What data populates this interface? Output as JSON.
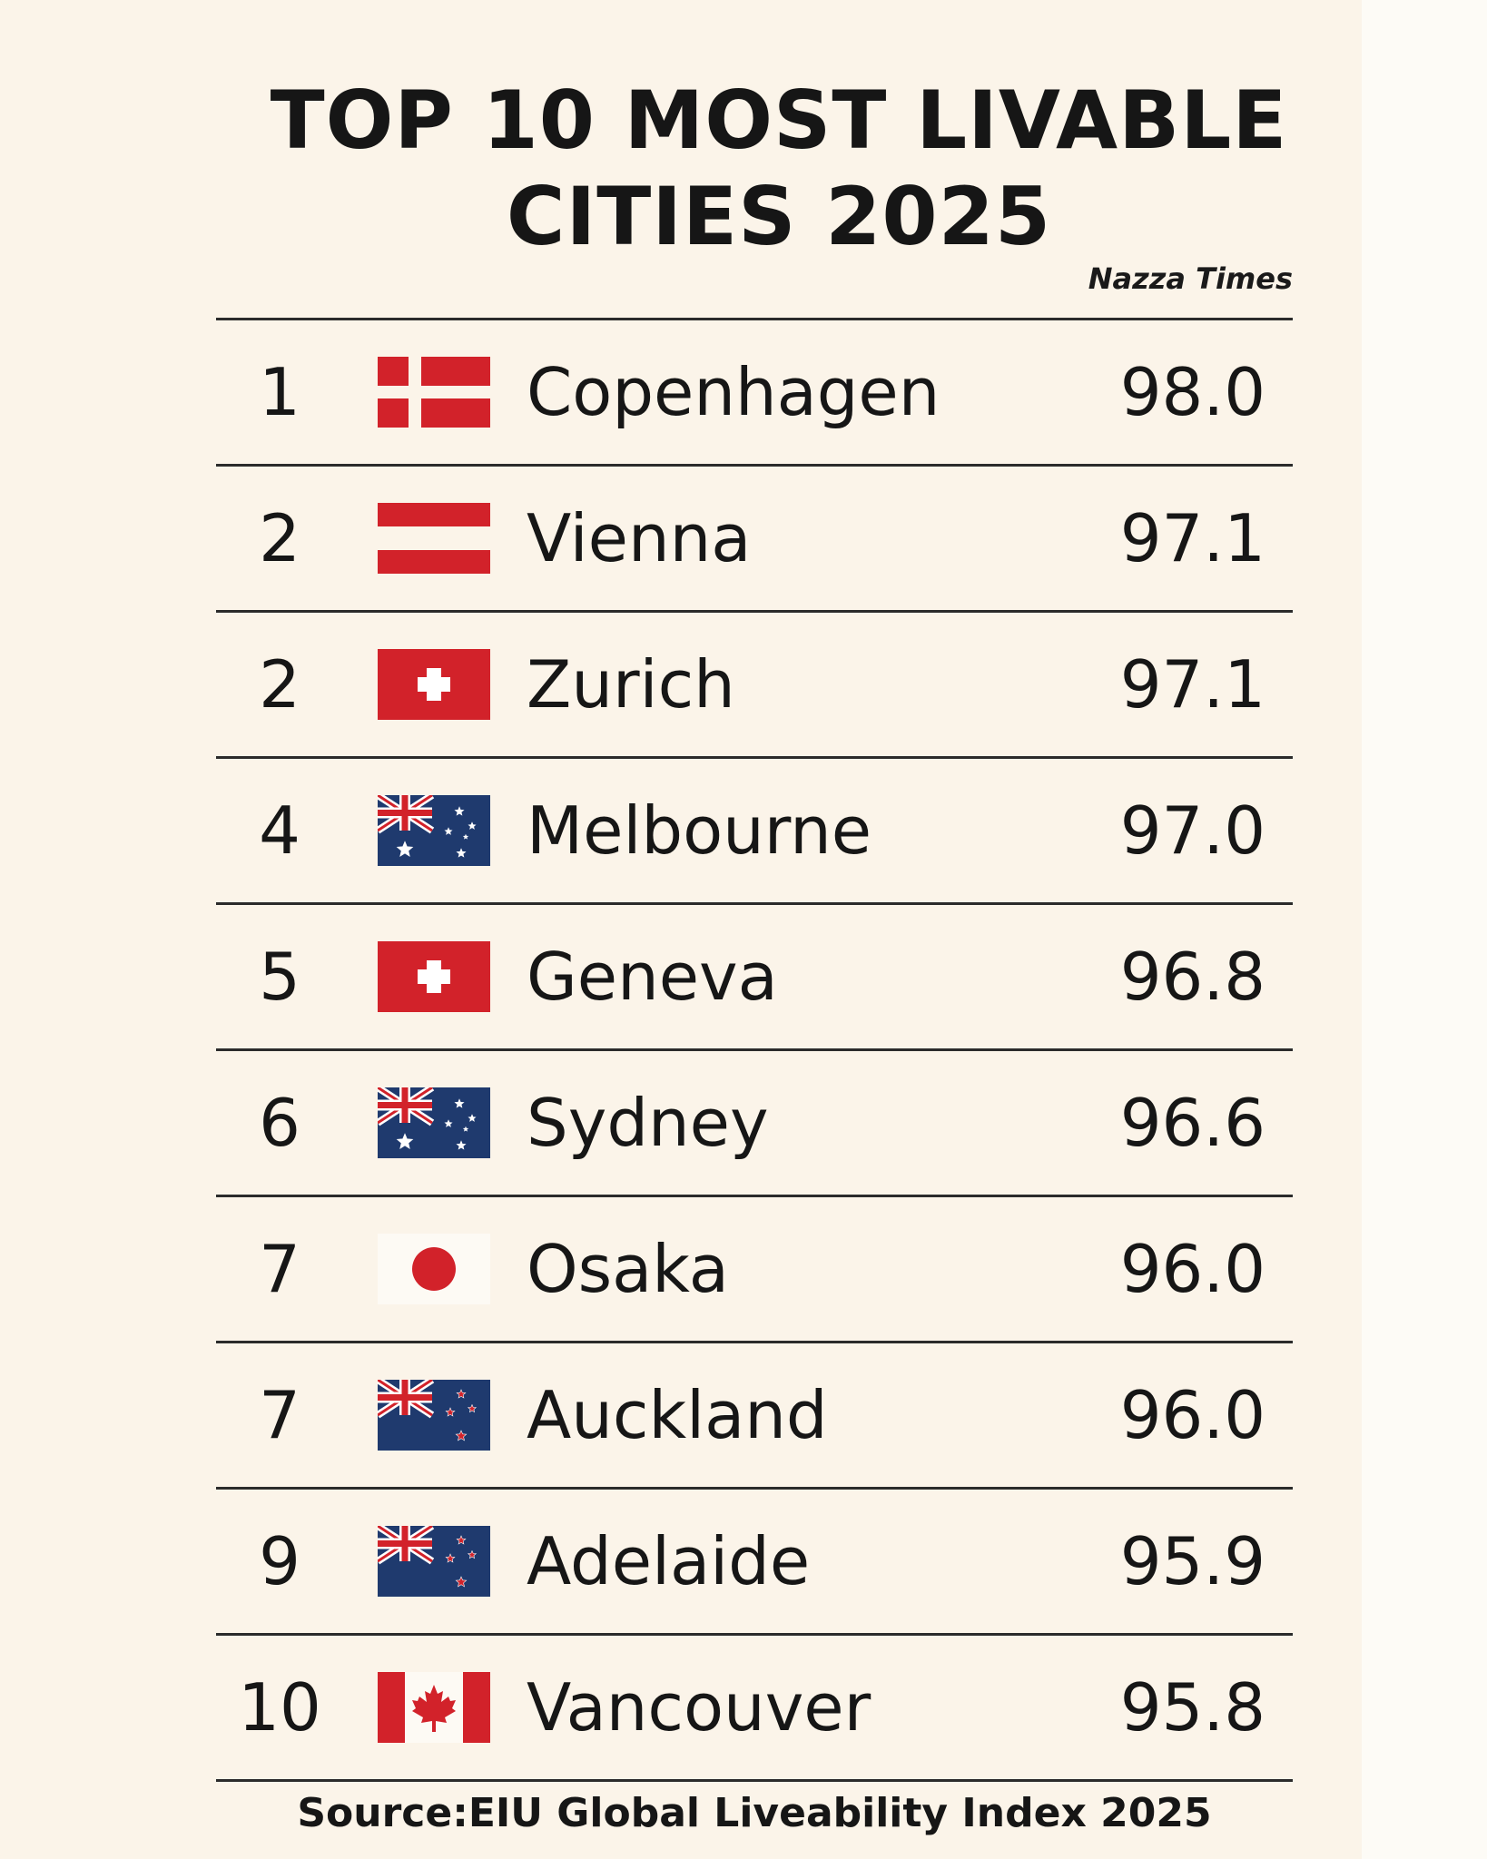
{
  "title": "TOP 10 MOST LIVABLE CITIES 2025",
  "brand": "Nazza Times",
  "source": "Source:EIU Global Liveability Index 2025",
  "chart_data": {
    "type": "table",
    "title": "TOP 10 MOST LIVABLE CITIES 2025",
    "rows": [
      {
        "rank": "1",
        "flag": "denmark-flag",
        "city": "Copenhagen",
        "score": "98.0"
      },
      {
        "rank": "2",
        "flag": "austria-flag",
        "city": "Vienna",
        "score": "97.1"
      },
      {
        "rank": "2",
        "flag": "switzerland-flag",
        "city": "Zurich",
        "score": "97.1"
      },
      {
        "rank": "4",
        "flag": "australia-flag",
        "city": "Melbourne",
        "score": "97.0"
      },
      {
        "rank": "5",
        "flag": "switzerland-flag",
        "city": "Geneva",
        "score": "96.8"
      },
      {
        "rank": "6",
        "flag": "australia-flag",
        "city": "Sydney",
        "score": "96.6"
      },
      {
        "rank": "7",
        "flag": "japan-flag",
        "city": "Osaka",
        "score": "96.0"
      },
      {
        "rank": "7",
        "flag": "new-zealand-flag",
        "city": "Auckland",
        "score": "96.0"
      },
      {
        "rank": "9",
        "flag": "new-zealand-flag",
        "city": "Adelaide",
        "score": "95.9"
      },
      {
        "rank": "10",
        "flag": "canada-flag",
        "city": "Vancouver",
        "score": "95.8"
      }
    ]
  },
  "colors": {
    "background": "#fbf4e9",
    "flag_red": "#d2222a",
    "flag_navy": "#1f3a6e",
    "text": "#161616"
  }
}
